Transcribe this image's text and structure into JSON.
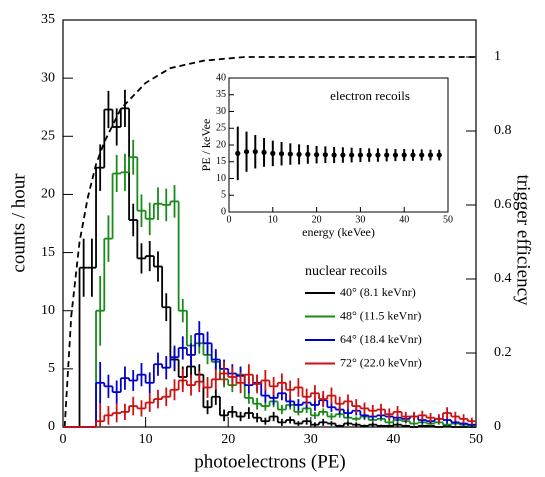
{
  "chart_data": [
    {
      "type": "histogram",
      "xlabel": "photoelectrons (PE)",
      "ylabel": "counts / hour",
      "y2label": "trigger efficiency",
      "xlim": [
        0,
        50
      ],
      "ylim": [
        0,
        35
      ],
      "y2lim": [
        0,
        1.1
      ],
      "xticks": [
        0,
        10,
        20,
        30,
        40,
        50
      ],
      "yticks": [
        0,
        5,
        10,
        15,
        20,
        25,
        30,
        35
      ],
      "y2ticks": [
        0,
        0.2,
        0.4,
        0.6,
        0.8,
        1
      ],
      "legend_title": "nuclear recoils",
      "bins": [
        0,
        1,
        2,
        3,
        4,
        5,
        6,
        7,
        8,
        9,
        10,
        11,
        12,
        13,
        14,
        15,
        16,
        17,
        18,
        19,
        20,
        21,
        22,
        23,
        24,
        25,
        26,
        27,
        28,
        29,
        30,
        31,
        32,
        33,
        34,
        35,
        36,
        37,
        38,
        39,
        40,
        41,
        42,
        43,
        44,
        45,
        46,
        47,
        48,
        49,
        50
      ],
      "series": [
        {
          "name": "40° (8.1 keVnr)",
          "color": "#000000",
          "values": [
            0,
            0,
            13.7,
            13.7,
            22.3,
            27.3,
            25.8,
            27.4,
            17.8,
            14.5,
            14.7,
            13.8,
            10.3,
            5.8,
            4.3,
            5.2,
            4.5,
            1.7,
            2.6,
            1.0,
            1.3,
            0.9,
            1.2,
            0.8,
            0.5,
            0.9,
            0.4,
            0.6,
            0.3,
            0.5,
            0.2,
            0.4,
            0.3,
            0.1,
            0.3,
            0.2,
            0.1,
            0.2,
            0.1,
            0.1,
            0.2,
            0.1,
            0,
            0.1,
            0.1,
            0,
            0.1,
            0,
            0,
            0
          ],
          "errors": [
            null,
            null,
            2.5,
            2.5,
            2,
            1.6,
            1.6,
            1.6,
            1.4,
            1.3,
            1.3,
            1.3,
            1.2,
            1.0,
            0.9,
            1.0,
            0.9,
            0.6,
            0.7,
            0.5,
            0.5,
            0.4,
            0.5,
            0.4,
            0.3,
            0.4,
            0.3,
            0.3,
            0.2,
            0.3,
            0.2,
            0.3,
            0.2,
            0.1,
            0.2,
            0.2,
            0.1,
            0.2,
            0.1,
            0.1,
            0.2,
            0.1,
            null,
            0.1,
            0.1,
            null,
            0.1,
            null,
            null,
            null
          ]
        },
        {
          "name": "48° (11.5 keVnr)",
          "color": "#1a8a1a",
          "values": [
            0,
            0,
            0,
            0,
            10,
            16.2,
            21.8,
            21.9,
            23.2,
            18.6,
            17.9,
            19.2,
            19.1,
            19.4,
            10.0,
            7.0,
            7.2,
            6.2,
            5.6,
            4.1,
            3.6,
            4.5,
            2.5,
            2.0,
            1.8,
            2.2,
            1.5,
            1.9,
            1.3,
            1.6,
            1.0,
            1.3,
            0.9,
            1.1,
            0.8,
            0.7,
            0.9,
            0.6,
            0.7,
            0.4,
            0.6,
            0.5,
            0.3,
            0.4,
            0.3,
            0.4,
            0.2,
            0.3,
            0.2,
            0.1
          ],
          "errors": [
            null,
            null,
            null,
            null,
            3,
            2,
            1.6,
            1.6,
            1.5,
            1.4,
            1.4,
            1.4,
            1.4,
            1.4,
            1.0,
            0.9,
            0.9,
            0.8,
            0.8,
            0.7,
            0.6,
            0.7,
            0.5,
            0.5,
            0.4,
            0.5,
            0.4,
            0.4,
            0.3,
            0.4,
            0.3,
            0.3,
            0.3,
            0.3,
            0.3,
            0.2,
            0.3,
            0.2,
            0.2,
            0.2,
            0.2,
            0.2,
            0.2,
            0.2,
            0.2,
            0.2,
            0.1,
            0.2,
            0.1,
            0.1
          ]
        },
        {
          "name": "64° (18.4 keVnr)",
          "color": "#0000cc",
          "values": [
            0,
            0,
            0,
            0,
            3.8,
            3.5,
            3.0,
            4.2,
            4.0,
            4.5,
            3.8,
            5.4,
            5.1,
            6.0,
            6.8,
            6.2,
            8.0,
            7.2,
            5.8,
            5.0,
            4.6,
            4.4,
            3.6,
            3.8,
            2.7,
            2.5,
            2.9,
            2.2,
            1.9,
            2.1,
            1.9,
            2.3,
            1.7,
            1.5,
            1.2,
            1.4,
            1.0,
            0.9,
            1.0,
            0.9,
            0.8,
            0.7,
            0.9,
            0.6,
            0.5,
            0.7,
            0.6,
            0.4,
            0.3,
            0.2
          ],
          "errors": [
            null,
            null,
            null,
            null,
            1.8,
            1.0,
            1.0,
            1.0,
            0.9,
            1.0,
            0.9,
            1.0,
            1.0,
            1.0,
            1.0,
            1.0,
            1.1,
            1.0,
            0.9,
            0.8,
            0.8,
            0.8,
            0.7,
            0.7,
            0.6,
            0.6,
            0.6,
            0.5,
            0.5,
            0.5,
            0.5,
            0.5,
            0.4,
            0.4,
            0.4,
            0.4,
            0.3,
            0.3,
            0.3,
            0.3,
            0.3,
            0.3,
            0.3,
            0.3,
            0.2,
            0.3,
            0.3,
            0.2,
            0.2,
            0.2
          ]
        },
        {
          "name": "72° (22.0 keVnr)",
          "color": "#cc1111",
          "values": [
            0,
            0,
            0,
            0,
            0.5,
            1.0,
            1.2,
            1.3,
            1.8,
            1.6,
            2.1,
            2.4,
            2.6,
            3.2,
            4.0,
            3.6,
            3.9,
            3.4,
            4.1,
            4.6,
            4.3,
            3.8,
            4.5,
            3.7,
            4.0,
            3.5,
            3.8,
            3.2,
            3.4,
            2.6,
            2.9,
            2.4,
            2.7,
            2.0,
            2.2,
            1.8,
            1.6,
            1.4,
            1.5,
            1.1,
            1.3,
            0.9,
            0.9,
            1.0,
            0.8,
            0.7,
            1.2,
            0.9,
            0.7,
            0.5
          ],
          "errors": [
            null,
            null,
            null,
            null,
            1.5,
            0.8,
            0.8,
            0.7,
            0.8,
            0.7,
            0.8,
            0.8,
            0.8,
            0.9,
            1.0,
            0.9,
            0.9,
            0.9,
            0.9,
            1.0,
            0.9,
            0.9,
            0.9,
            0.8,
            0.9,
            0.8,
            0.8,
            0.8,
            0.8,
            0.7,
            0.7,
            0.7,
            0.7,
            0.6,
            0.6,
            0.6,
            0.5,
            0.5,
            0.5,
            0.5,
            0.5,
            0.4,
            0.4,
            0.4,
            0.4,
            0.4,
            0.5,
            0.4,
            0.4,
            0.3
          ]
        }
      ],
      "efficiency": {
        "axis": "y2",
        "color": "#000000",
        "dashed": true,
        "x": [
          0.2,
          1,
          2,
          3,
          4,
          5,
          7,
          10,
          13,
          17,
          22,
          30,
          40,
          50
        ],
        "values": [
          0,
          0.3,
          0.5,
          0.62,
          0.71,
          0.77,
          0.86,
          0.93,
          0.97,
          0.99,
          1,
          1,
          1,
          1
        ]
      }
    },
    {
      "type": "scatter",
      "title": "electron recoils",
      "xlabel": "energy (keVee)",
      "ylabel": "PE / keVee",
      "xlim": [
        0,
        50
      ],
      "ylim": [
        0,
        40
      ],
      "xticks": [
        0,
        10,
        20,
        30,
        40,
        50
      ],
      "yticks": [
        0,
        5,
        10,
        15,
        20,
        25,
        30,
        35,
        40
      ],
      "color": "#000000",
      "x": [
        2,
        4,
        6,
        8,
        10,
        12,
        14,
        16,
        18,
        20,
        22,
        24,
        26,
        28,
        30,
        32,
        34,
        36,
        38,
        40,
        42,
        44,
        46,
        48
      ],
      "values": [
        17.5,
        18,
        18,
        17.8,
        17.5,
        17.4,
        17.3,
        17.2,
        17.2,
        17.1,
        17.1,
        17,
        17,
        17,
        17,
        17,
        17,
        17,
        17,
        17,
        17,
        17,
        17,
        17
      ],
      "errors": [
        8,
        6,
        5,
        4.3,
        3.8,
        3.5,
        3.2,
        3,
        2.8,
        2.6,
        2.5,
        2.4,
        2.3,
        2.2,
        2.1,
        2,
        2,
        1.9,
        1.8,
        1.8,
        1.7,
        1.7,
        1.6,
        1.6
      ]
    }
  ]
}
